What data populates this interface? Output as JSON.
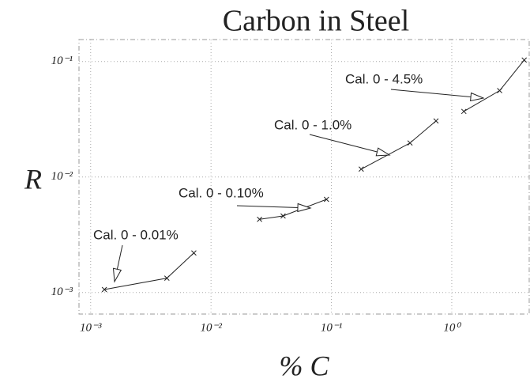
{
  "chart_data": {
    "type": "scatter",
    "title": "Carbon in Steel",
    "x_label": "% C",
    "y_label": "R",
    "log_x": true,
    "log_y": true,
    "grid": true,
    "xlim": [
      0.0008,
      4.4
    ],
    "ylim": [
      0.00065,
      0.155
    ],
    "xticks": [
      {
        "value": 0.001,
        "label": "10⁻³"
      },
      {
        "value": 0.01,
        "label": "10⁻²"
      },
      {
        "value": 0.1,
        "label": "10⁻¹"
      },
      {
        "value": 1,
        "label": "10⁰"
      }
    ],
    "yticks": [
      {
        "value": 0.001,
        "label": "10⁻³"
      },
      {
        "value": 0.01,
        "label": "10⁻²"
      },
      {
        "value": 0.1,
        "label": "10⁻¹"
      }
    ],
    "series": [
      {
        "name": "Cal. 0 - 0.01%",
        "color": "#222222",
        "x": [
          0.0013,
          0.0043,
          0.0072
        ],
        "values": [
          0.00106,
          0.00133,
          0.0022
        ]
      },
      {
        "name": "Cal. 0 - 0.10%",
        "color": "#222222",
        "x": [
          0.0253,
          0.0397,
          0.091
        ],
        "values": [
          0.0043,
          0.0046,
          0.0064
        ]
      },
      {
        "name": "Cal. 0 - 1.0%",
        "color": "#222222",
        "x": [
          0.177,
          0.45,
          0.74
        ],
        "values": [
          0.0117,
          0.0197,
          0.0306
        ]
      },
      {
        "name": "Cal. 0 - 4.5%",
        "color": "#222222",
        "x": [
          1.26,
          2.5,
          4.0
        ],
        "values": [
          0.037,
          0.056,
          0.103
        ]
      }
    ]
  }
}
